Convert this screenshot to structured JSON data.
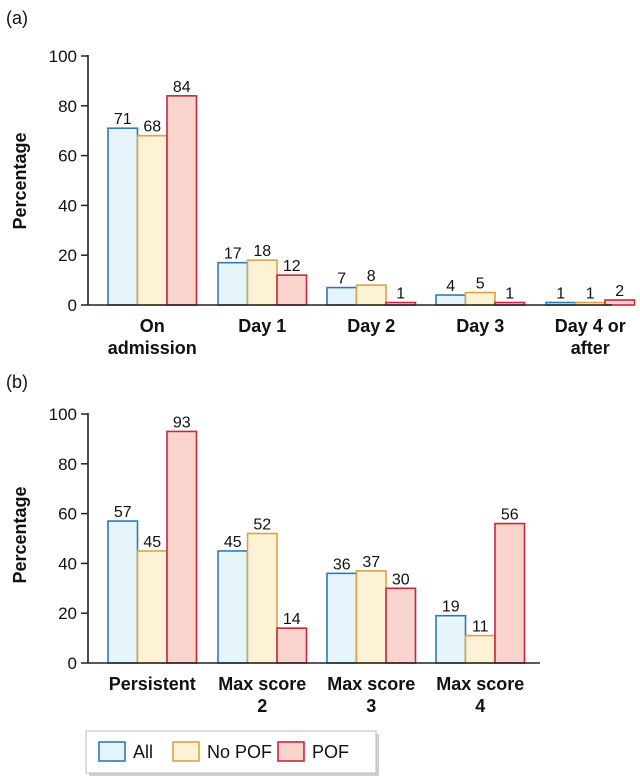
{
  "chart_data": [
    {
      "type": "bar",
      "panel": "(a)",
      "ylabel": "Percentage",
      "ylim": [
        0,
        100
      ],
      "yticks": [
        0,
        20,
        40,
        60,
        80,
        100
      ],
      "categories": [
        [
          "On",
          "admission"
        ],
        [
          "Day 1"
        ],
        [
          "Day 2"
        ],
        [
          "Day 3"
        ],
        [
          "Day 4 or",
          "after"
        ]
      ],
      "series": [
        {
          "name": "All",
          "values": [
            71,
            17,
            7,
            4,
            1
          ]
        },
        {
          "name": "No POF",
          "values": [
            68,
            18,
            8,
            5,
            1
          ]
        },
        {
          "name": "POF",
          "values": [
            84,
            12,
            1,
            1,
            2
          ]
        }
      ],
      "grid": false
    },
    {
      "type": "bar",
      "panel": "(b)",
      "ylabel": "Percentage",
      "ylim": [
        0,
        100
      ],
      "yticks": [
        0,
        20,
        40,
        60,
        80,
        100
      ],
      "categories": [
        [
          "Persistent"
        ],
        [
          "Max score",
          "2"
        ],
        [
          "Max score",
          "3"
        ],
        [
          "Max score",
          "4"
        ]
      ],
      "series": [
        {
          "name": "All",
          "values": [
            57,
            45,
            36,
            19
          ]
        },
        {
          "name": "No POF",
          "values": [
            45,
            52,
            37,
            11
          ]
        },
        {
          "name": "POF",
          "values": [
            93,
            14,
            30,
            56
          ]
        }
      ],
      "grid": false
    }
  ],
  "legend": {
    "placement": "bottom-left",
    "entries": [
      "All",
      "No POF",
      "POF"
    ]
  },
  "colors": {
    "All": {
      "fill": "#e6f4fb",
      "stroke": "#2e7bb4"
    },
    "No POF": {
      "fill": "#fdf1d6",
      "stroke": "#d9a441"
    },
    "POF": {
      "fill": "#f9d4cc",
      "stroke": "#c8283c"
    },
    "axis": "#222222"
  }
}
